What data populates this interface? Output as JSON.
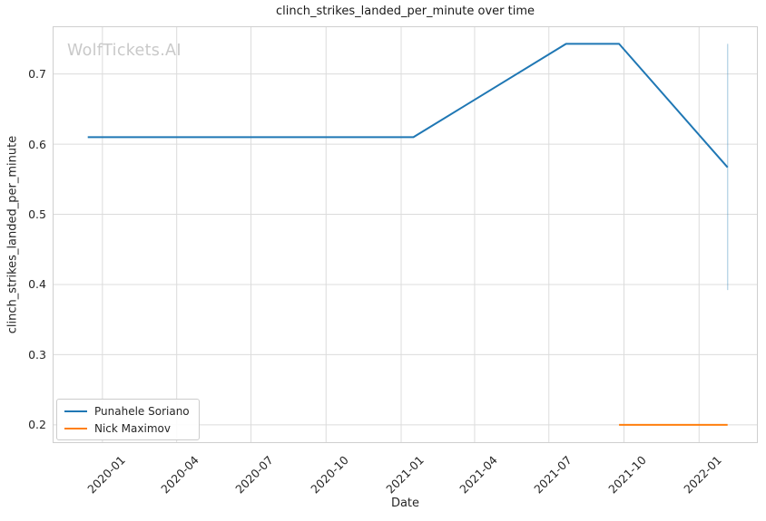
{
  "watermark": "WolfTickets.AI",
  "chart_data": {
    "type": "line",
    "title": "clinch_strikes_landed_per_minute over time",
    "xlabel": "Date",
    "ylabel": "clinch_strikes_landed_per_minute",
    "grid": true,
    "legend_position": "lower left",
    "xlim": [
      "2019-11-01",
      "2022-03-14"
    ],
    "ylim": [
      0.174,
      0.768
    ],
    "colors": {
      "grid": "#dcdcdc",
      "spine": "#cfcfcf",
      "text": "#262626",
      "title": "#1a1a1a",
      "watermark": "#c9c9c9",
      "series_blue": "#1f77b4",
      "series_orange": "#ff7f0e"
    },
    "xticks": [
      {
        "label": "2020-01",
        "date": "2020-01-01"
      },
      {
        "label": "2020-04",
        "date": "2020-04-01"
      },
      {
        "label": "2020-07",
        "date": "2020-07-01"
      },
      {
        "label": "2020-10",
        "date": "2020-10-01"
      },
      {
        "label": "2021-01",
        "date": "2021-01-01"
      },
      {
        "label": "2021-04",
        "date": "2021-04-01"
      },
      {
        "label": "2021-07",
        "date": "2021-07-01"
      },
      {
        "label": "2021-10",
        "date": "2021-10-01"
      },
      {
        "label": "2022-01",
        "date": "2022-01-01"
      }
    ],
    "yticks": [
      {
        "label": "0.2",
        "value": 0.2
      },
      {
        "label": "0.3",
        "value": 0.3
      },
      {
        "label": "0.4",
        "value": 0.4
      },
      {
        "label": "0.5",
        "value": 0.5
      },
      {
        "label": "0.6",
        "value": 0.6
      },
      {
        "label": "0.7",
        "value": 0.7
      }
    ],
    "series": [
      {
        "name": "Punahele Soriano",
        "color": "#1f77b4",
        "x": [
          "2019-12-14",
          "2021-01-16",
          "2021-07-22",
          "2021-09-25",
          "2022-02-05"
        ],
        "y": [
          0.61,
          0.61,
          0.743,
          0.743,
          0.567
        ]
      },
      {
        "name": "Nick Maximov",
        "color": "#ff7f0e",
        "x": [
          "2021-09-25",
          "2022-02-05"
        ],
        "y": [
          0.2,
          0.2
        ]
      }
    ],
    "error_bars": [
      {
        "series": "Punahele Soriano",
        "x": "2022-02-05",
        "low": 0.392,
        "high": 0.743
      }
    ]
  }
}
